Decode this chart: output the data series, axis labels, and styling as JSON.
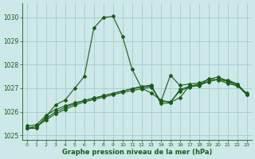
{
  "title": "Graphe pression niveau de la mer (hPa)",
  "background_color": "#cce8e8",
  "grid_color": "#aacfcf",
  "line_color": "#1a5c1a",
  "xlim": [
    -0.5,
    23.5
  ],
  "ylim": [
    1024.8,
    1030.6
  ],
  "yticks": [
    1025,
    1026,
    1027,
    1028,
    1029,
    1030
  ],
  "xticks": [
    0,
    1,
    2,
    3,
    4,
    5,
    6,
    7,
    8,
    9,
    10,
    11,
    12,
    13,
    14,
    15,
    16,
    17,
    18,
    19,
    20,
    21,
    22,
    23
  ],
  "series1": {
    "x": [
      0,
      1,
      2,
      3,
      4,
      5,
      6,
      7,
      8,
      9,
      10,
      11,
      12,
      13,
      14,
      15,
      16,
      17,
      18,
      19,
      20,
      21,
      22,
      23
    ],
    "y": [
      1025.3,
      1025.3,
      1025.8,
      1026.3,
      1026.5,
      1027.0,
      1027.5,
      1029.55,
      1030.0,
      1030.05,
      1029.2,
      1027.8,
      1027.0,
      1026.8,
      1026.5,
      1026.4,
      1026.6,
      1027.1,
      1027.1,
      1027.4,
      1027.35,
      1027.2,
      1027.1,
      1026.8
    ]
  },
  "series2": {
    "x": [
      0,
      1,
      2,
      3,
      4,
      5,
      6,
      7,
      8,
      9,
      10,
      11,
      12,
      13,
      14,
      15,
      16,
      17,
      18,
      19,
      20,
      21,
      22,
      23
    ],
    "y": [
      1025.4,
      1025.45,
      1025.85,
      1026.1,
      1026.25,
      1026.38,
      1026.48,
      1026.58,
      1026.68,
      1026.78,
      1026.88,
      1026.98,
      1027.08,
      1027.13,
      1026.35,
      1026.38,
      1026.95,
      1027.08,
      1027.18,
      1027.28,
      1027.38,
      1027.35,
      1027.18,
      1026.75
    ]
  },
  "series3": {
    "x": [
      0,
      1,
      2,
      3,
      4,
      5,
      6,
      7,
      8,
      9,
      10,
      11,
      12,
      13,
      14,
      15,
      16,
      17,
      18,
      19,
      20,
      21,
      22,
      23
    ],
    "y": [
      1025.3,
      1025.38,
      1025.72,
      1026.0,
      1026.18,
      1026.35,
      1026.48,
      1026.58,
      1026.68,
      1026.78,
      1026.88,
      1026.98,
      1027.05,
      1027.1,
      1026.42,
      1027.55,
      1027.12,
      1027.18,
      1027.22,
      1027.38,
      1027.48,
      1027.3,
      1027.18,
      1026.72
    ]
  },
  "series4": {
    "x": [
      0,
      1,
      2,
      3,
      4,
      5,
      6,
      7,
      8,
      9,
      10,
      11,
      12,
      13,
      14,
      15,
      16,
      17,
      18,
      19,
      20,
      21,
      22,
      23
    ],
    "y": [
      1025.3,
      1025.38,
      1025.65,
      1025.92,
      1026.1,
      1026.28,
      1026.42,
      1026.52,
      1026.62,
      1026.72,
      1026.82,
      1026.9,
      1026.98,
      1027.05,
      1026.45,
      1026.42,
      1026.88,
      1027.05,
      1027.12,
      1027.28,
      1027.38,
      1027.28,
      1027.12,
      1026.72
    ]
  }
}
